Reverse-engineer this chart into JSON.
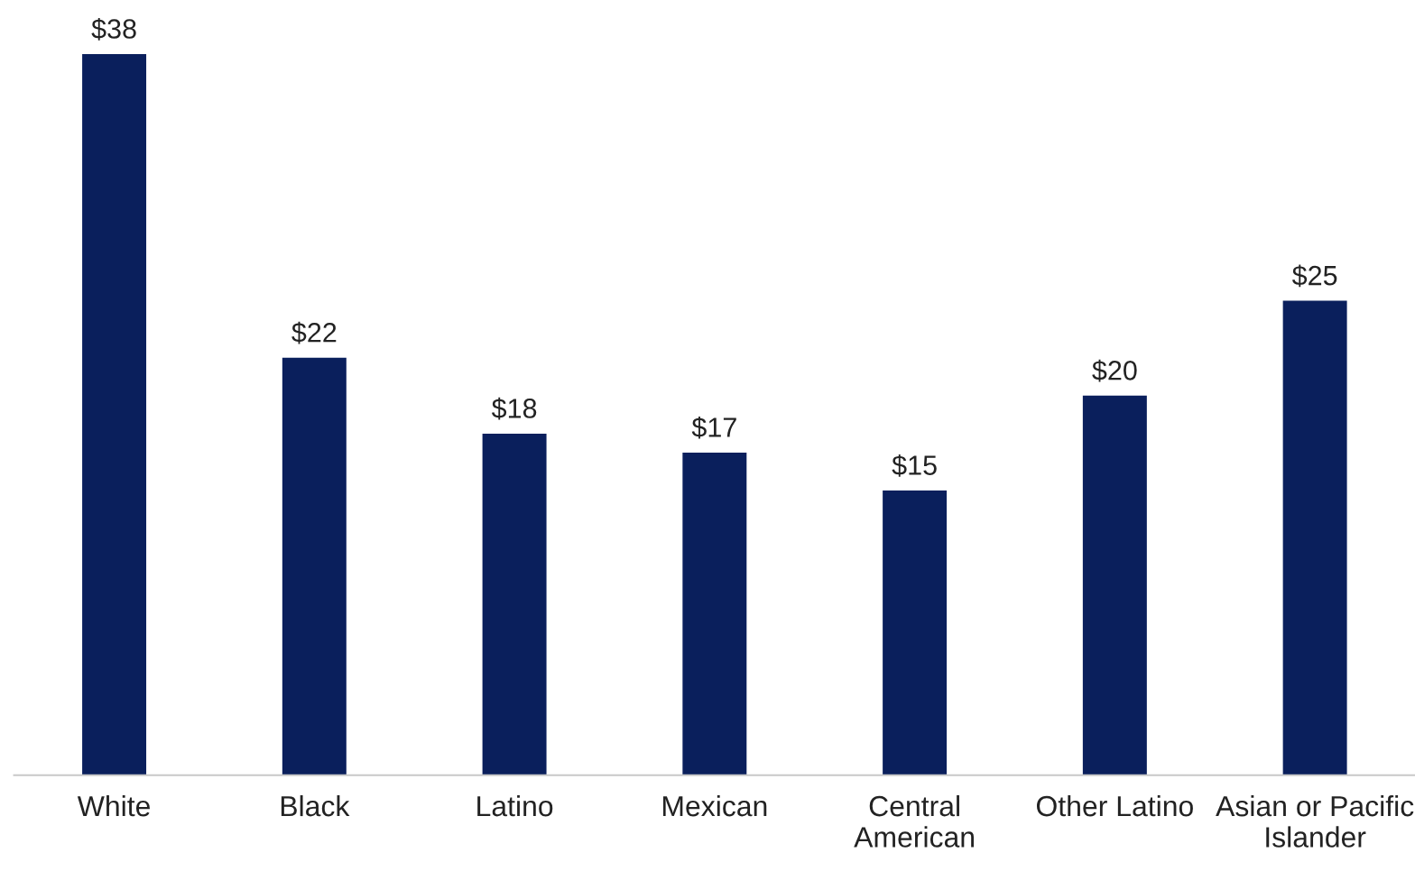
{
  "chart_data": {
    "type": "bar",
    "categories": [
      "White",
      "Black",
      "Latino",
      "Mexican",
      "Central\nAmerican",
      "Other Latino",
      "Asian or Pacific\nIslander"
    ],
    "values": [
      38,
      22,
      18,
      17,
      15,
      20,
      25
    ],
    "value_labels": [
      "$38",
      "$22",
      "$18",
      "$17",
      "$15",
      "$20",
      "$25"
    ],
    "color": "#0a1f5c",
    "grid": false,
    "legend": false
  }
}
